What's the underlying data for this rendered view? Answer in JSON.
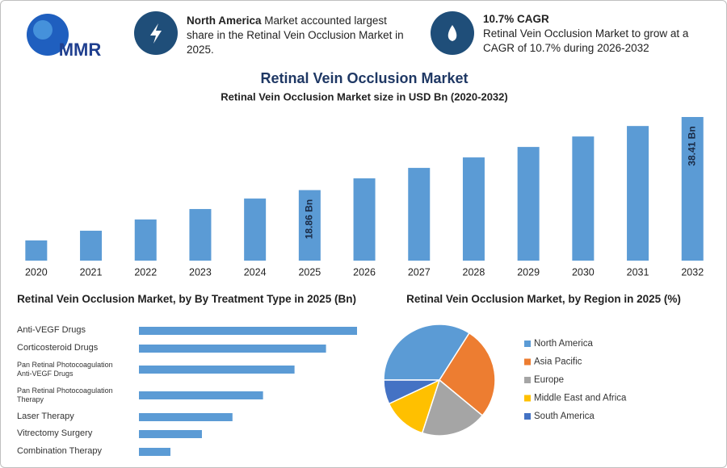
{
  "header": {
    "logo": "MMR",
    "info": [
      {
        "highlight": "North America",
        "text": "Market accounted largest share in the Retinal Vein Occlusion Market in 2025."
      },
      {
        "highlight": "10.7% CAGR",
        "text": "Retinal Vein Occlusion Market to grow at a CAGR of 10.7% during 2026-2032"
      }
    ]
  },
  "chart_data": [
    {
      "type": "bar",
      "title": "Retinal Vein Occlusion Market",
      "subtitle": "Retinal Vein Occlusion Market size in USD Bn (2020-2032)",
      "categories": [
        "2020",
        "2021",
        "2022",
        "2023",
        "2024",
        "2025",
        "2026",
        "2027",
        "2028",
        "2029",
        "2030",
        "2031",
        "2032"
      ],
      "values": [
        5.4,
        8.0,
        11.0,
        13.8,
        16.6,
        18.86,
        22.0,
        24.8,
        27.6,
        30.4,
        33.2,
        36.0,
        38.41
      ],
      "value_labels": [
        null,
        null,
        null,
        null,
        null,
        "18.86 Bn",
        null,
        null,
        null,
        null,
        null,
        null,
        "38.41 Bn"
      ],
      "color": "#5b9bd5"
    },
    {
      "type": "hbar",
      "title": "Retinal Vein Occlusion Market, by By Treatment Type in 2025 (Bn)",
      "categories": [
        "Anti-VEGF Drugs",
        "Corticosteroid Drugs",
        "Pan Retinal Photocoagulation\nAnti-VEGF Drugs",
        "Pan Retinal Photocoagulation\nTherapy",
        "Laser Therapy",
        "Vitrectomy Surgery",
        "Combination Therapy"
      ],
      "values": [
        4.71,
        4.04,
        3.36,
        2.68,
        2.02,
        1.36,
        0.68
      ],
      "color": "#5b9bd5"
    },
    {
      "type": "pie",
      "title": "Retinal Vein Occlusion Market, by Region in 2025 (%)",
      "categories": [
        "North America",
        "Asia Pacific",
        "Europe",
        "Middle East and Africa",
        "South America"
      ],
      "values": [
        34,
        27,
        19,
        13,
        7
      ],
      "colors": [
        "#5b9bd5",
        "#ed7d31",
        "#a5a5a5",
        "#ffc000",
        "#4472c4"
      ],
      "legend": "right"
    }
  ]
}
